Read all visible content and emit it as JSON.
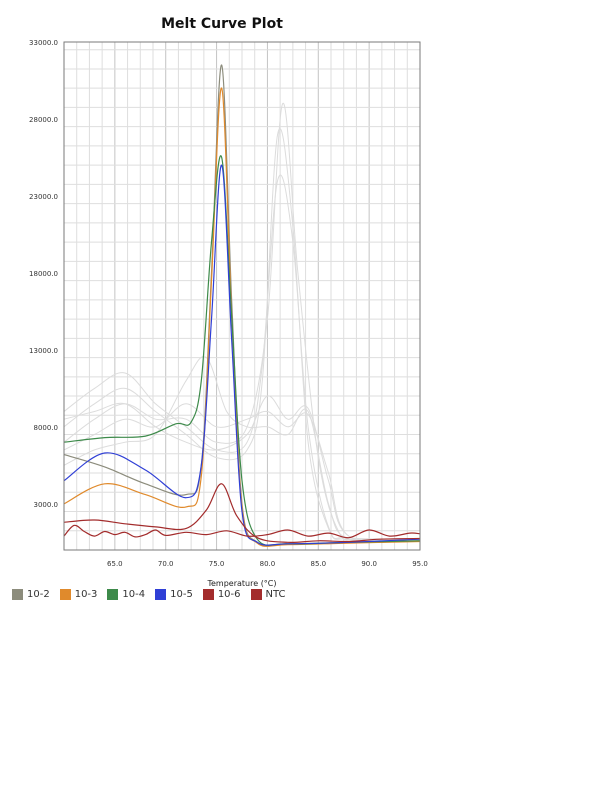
{
  "chart_data": {
    "type": "line",
    "title": "Melt Curve Plot",
    "xlabel": "Temperature (°C)",
    "ylabel": "",
    "xlim": [
      60,
      95
    ],
    "ylim": [
      0,
      33000
    ],
    "x_ticks": [
      65.0,
      70.0,
      75.0,
      80.0,
      85.0,
      90.0,
      95.0
    ],
    "x_tick_labels": [
      "65.0",
      "70.0",
      "75.0",
      "80.0",
      "85.0",
      "90.0",
      "95.0"
    ],
    "y_ticks": [
      3000,
      8000,
      13000,
      18000,
      23000,
      28000,
      33000
    ],
    "y_tick_labels": [
      "3000.0",
      "8000.0",
      "13000.0",
      "18000.0",
      "23000.0",
      "28000.0",
      "33000.0"
    ],
    "grid": true,
    "legend_position": "bottom-left",
    "colors": {
      "10-2": "#8c8c7c",
      "10-3": "#e08a2c",
      "10-4": "#3d8a4a",
      "10-5": "#2f3fd6",
      "10-6": "#a32c2c",
      "NTC": "#a32c2c",
      "background_traces": "#dcdcdc"
    },
    "series": [
      {
        "name": "10-2",
        "x": [
          60,
          64,
          68,
          72,
          73.5,
          74.5,
          75.5,
          76.5,
          77.5,
          79,
          82,
          88,
          95
        ],
        "values": [
          6200,
          5400,
          4300,
          3600,
          5500,
          18000,
          31500,
          16000,
          3000,
          500,
          400,
          500,
          600
        ]
      },
      {
        "name": "10-3",
        "x": [
          60,
          64,
          68,
          72,
          73.5,
          74.5,
          75.5,
          76.5,
          77.5,
          79,
          82,
          88,
          95
        ],
        "values": [
          3000,
          4300,
          3600,
          2800,
          4800,
          17500,
          30000,
          15000,
          2800,
          450,
          350,
          450,
          550
        ]
      },
      {
        "name": "10-4",
        "x": [
          60,
          64,
          68,
          71,
          72.5,
          73.5,
          74.5,
          75.5,
          76.5,
          77.5,
          79,
          82,
          88,
          95
        ],
        "values": [
          7000,
          7300,
          7400,
          8200,
          8300,
          11000,
          20000,
          25500,
          15000,
          4500,
          700,
          400,
          500,
          600
        ]
      },
      {
        "name": "10-5",
        "x": [
          60,
          64,
          68,
          72,
          73.5,
          74.5,
          75.5,
          76.5,
          77.5,
          79,
          82,
          88,
          95
        ],
        "values": [
          4500,
          6300,
          5200,
          3400,
          5500,
          15000,
          25000,
          13500,
          2500,
          500,
          400,
          500,
          700
        ]
      },
      {
        "name": "10-6",
        "x": [
          60,
          63,
          66,
          69,
          72,
          74,
          75.5,
          77,
          79,
          82,
          85,
          88,
          91,
          95
        ],
        "values": [
          1800,
          1950,
          1700,
          1500,
          1400,
          2600,
          4300,
          2200,
          800,
          500,
          600,
          550,
          700,
          750
        ]
      },
      {
        "name": "NTC",
        "x": [
          60,
          61,
          62,
          63,
          64,
          65,
          66,
          67,
          68,
          69,
          70,
          72,
          74,
          76,
          78,
          80,
          82,
          84,
          86,
          88,
          90,
          92,
          94,
          95
        ],
        "values": [
          900,
          1600,
          1200,
          900,
          1200,
          1000,
          1150,
          850,
          1000,
          1300,
          950,
          1150,
          1000,
          1250,
          900,
          1000,
          1300,
          900,
          1100,
          800,
          1300,
          900,
          1100,
          1050
        ]
      }
    ],
    "background_traces": [
      {
        "x": [
          60,
          63,
          66,
          69,
          72,
          75,
          78,
          79.5,
          81,
          82.5,
          84,
          86,
          88,
          95
        ],
        "values": [
          9000,
          10500,
          11500,
          9500,
          8000,
          6500,
          7000,
          12000,
          24000,
          20000,
          8000,
          1500,
          800,
          700
        ]
      },
      {
        "x": [
          60,
          63,
          66,
          69,
          72,
          75,
          78,
          79.5,
          81,
          82.5,
          84,
          86,
          88,
          95
        ],
        "values": [
          8000,
          9500,
          10500,
          9000,
          7500,
          6000,
          6500,
          11000,
          27000,
          21000,
          7000,
          1400,
          700,
          650
        ]
      },
      {
        "x": [
          60,
          63,
          66,
          69,
          72,
          75,
          78,
          80,
          81.5,
          83,
          85,
          87,
          89,
          95
        ],
        "values": [
          7000,
          8500,
          9500,
          8500,
          8500,
          7000,
          8000,
          15000,
          29000,
          18000,
          6000,
          1200,
          700,
          650
        ]
      },
      {
        "x": [
          60,
          63,
          66,
          69,
          72,
          75,
          78,
          80,
          82,
          84,
          86,
          88,
          95
        ],
        "values": [
          6500,
          7500,
          8500,
          8000,
          9500,
          8000,
          8500,
          9000,
          8000,
          8800,
          5000,
          900,
          700
        ]
      },
      {
        "x": [
          60,
          63,
          66,
          69,
          72,
          74,
          76,
          78,
          80,
          82,
          84,
          86,
          88,
          95
        ],
        "values": [
          5500,
          6500,
          7000,
          7500,
          11000,
          12500,
          9000,
          8000,
          8000,
          7500,
          9000,
          3000,
          700,
          650
        ]
      },
      {
        "x": [
          60,
          63,
          66,
          69,
          72,
          75,
          78,
          80,
          82,
          84,
          86,
          88,
          95
        ],
        "values": [
          8500,
          9000,
          9500,
          8000,
          7000,
          6500,
          7500,
          10000,
          8500,
          9200,
          4500,
          900,
          700
        ]
      }
    ]
  }
}
